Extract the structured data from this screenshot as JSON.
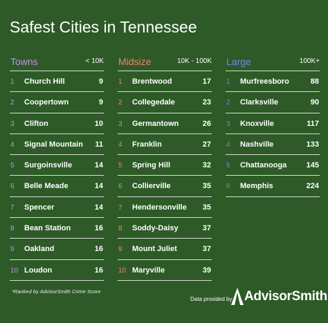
{
  "title": "Safest Cities in Tennessee",
  "columns": [
    {
      "heading": "Towns",
      "range": "< 10K",
      "color": "#c391e3",
      "rows": [
        {
          "rank": 1,
          "city": "Church Hill",
          "score": 9
        },
        {
          "rank": 2,
          "city": "Coopertown",
          "score": 9
        },
        {
          "rank": 3,
          "city": "Clifton",
          "score": 10
        },
        {
          "rank": 4,
          "city": "Signal Mountain",
          "score": 11
        },
        {
          "rank": 5,
          "city": "Surgoinsville",
          "score": 14
        },
        {
          "rank": 6,
          "city": "Belle Meade",
          "score": 14
        },
        {
          "rank": 7,
          "city": "Spencer",
          "score": 14
        },
        {
          "rank": 8,
          "city": "Bean Station",
          "score": 16
        },
        {
          "rank": 9,
          "city": "Oakland",
          "score": 16
        },
        {
          "rank": 10,
          "city": "Loudon",
          "score": 16
        }
      ]
    },
    {
      "heading": "Midsize",
      "range": "10K - 100K",
      "color": "#f3836f",
      "rows": [
        {
          "rank": 1,
          "city": "Brentwood",
          "score": 17
        },
        {
          "rank": 2,
          "city": "Collegedale",
          "score": 23
        },
        {
          "rank": 3,
          "city": "Germantown",
          "score": 26
        },
        {
          "rank": 4,
          "city": "Franklin",
          "score": 27
        },
        {
          "rank": 5,
          "city": "Spring Hill",
          "score": 32
        },
        {
          "rank": 6,
          "city": "Collierville",
          "score": 35
        },
        {
          "rank": 7,
          "city": "Hendersonville",
          "score": 35
        },
        {
          "rank": 8,
          "city": "Soddy-Daisy",
          "score": 37
        },
        {
          "rank": 9,
          "city": "Mount Juliet",
          "score": 37
        },
        {
          "rank": 10,
          "city": "Maryville",
          "score": 39
        }
      ]
    },
    {
      "heading": "Large",
      "range": "100K+",
      "color": "#7486ea",
      "rows": [
        {
          "rank": 1,
          "city": "Murfreesboro",
          "score": 88
        },
        {
          "rank": 2,
          "city": "Clarksville",
          "score": 90
        },
        {
          "rank": 3,
          "city": "Knoxville",
          "score": 117
        },
        {
          "rank": 4,
          "city": "Nashville",
          "score": 133
        },
        {
          "rank": 5,
          "city": "Chattanooga",
          "score": 145
        },
        {
          "rank": 6,
          "city": "Memphis",
          "score": 224
        }
      ]
    }
  ],
  "footnote": "*Ranked by AdvisorSmith Crime Score",
  "credit": "Data provided by",
  "logo": "AdvisorSmith"
}
